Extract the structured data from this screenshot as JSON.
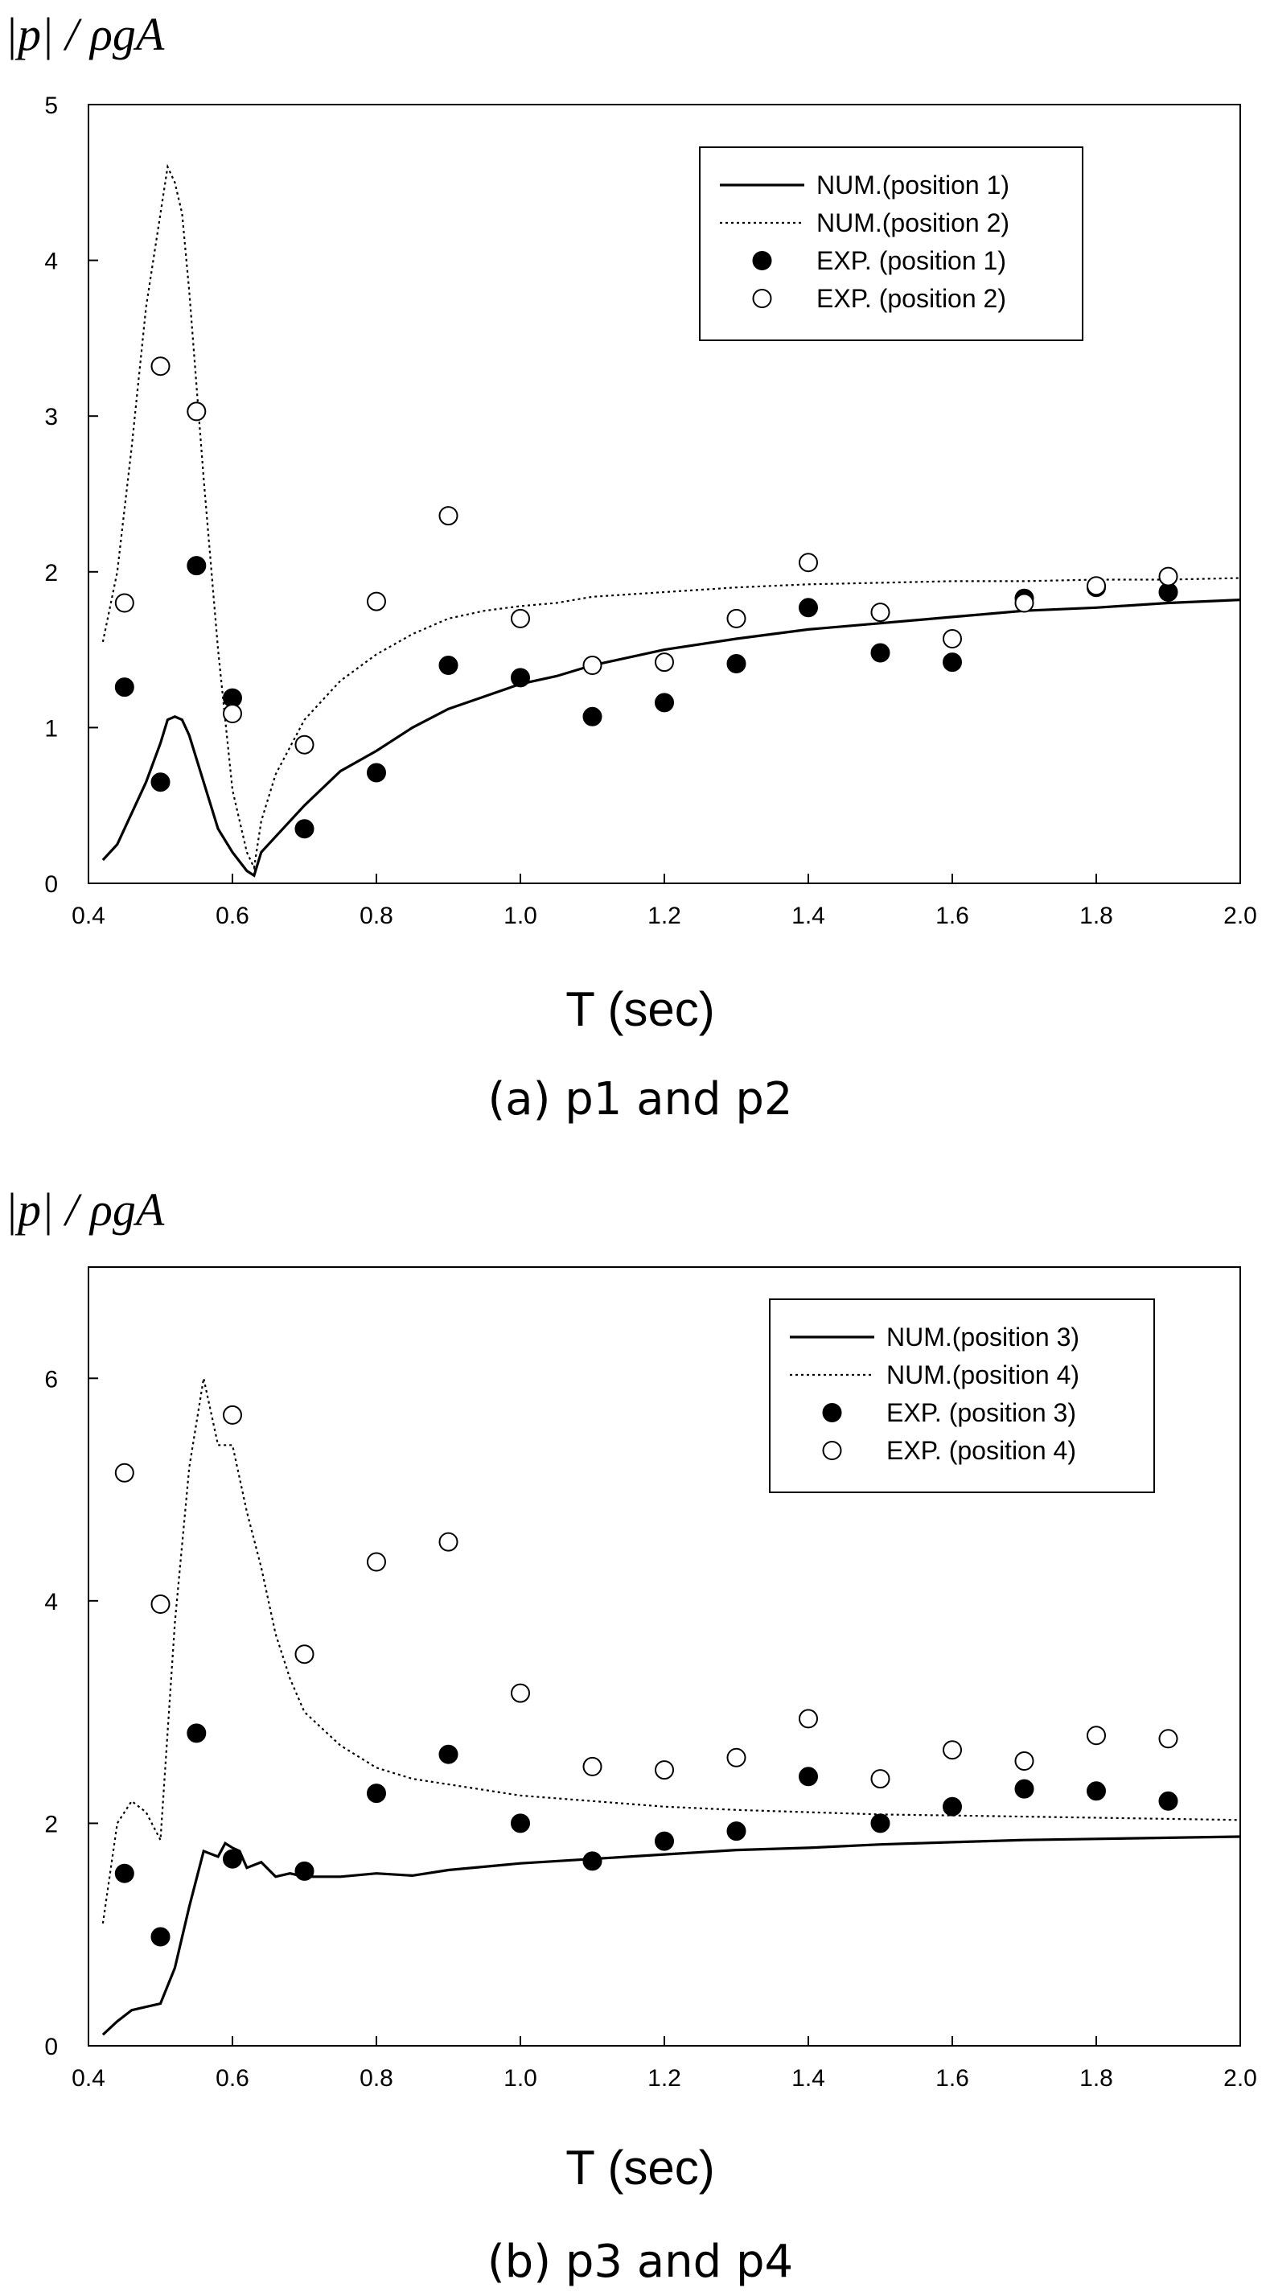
{
  "chart_data": [
    {
      "type": "line",
      "ylabel": "|p| / ρgA",
      "xlabel": "T (sec)",
      "caption": "(a) p1 and p2",
      "xlim": [
        0.4,
        2.0
      ],
      "ylim": [
        0,
        5
      ],
      "xticks": [
        "0.4",
        "0.6",
        "0.8",
        "1.0",
        "1.2",
        "1.4",
        "1.6",
        "1.8",
        "2.0"
      ],
      "yticks": [
        "0",
        "1",
        "2",
        "3",
        "4",
        "5"
      ],
      "legend_position": "top-right",
      "series": [
        {
          "name": "NUM.(position 1)",
          "style": "solid",
          "x": [
            0.42,
            0.44,
            0.46,
            0.48,
            0.5,
            0.51,
            0.52,
            0.53,
            0.54,
            0.56,
            0.58,
            0.6,
            0.62,
            0.63,
            0.64,
            0.66,
            0.7,
            0.75,
            0.8,
            0.85,
            0.9,
            0.95,
            1.0,
            1.05,
            1.1,
            1.2,
            1.3,
            1.4,
            1.5,
            1.6,
            1.7,
            1.8,
            1.9,
            2.0
          ],
          "y": [
            0.15,
            0.25,
            0.45,
            0.65,
            0.9,
            1.05,
            1.07,
            1.05,
            0.95,
            0.65,
            0.35,
            0.2,
            0.08,
            0.05,
            0.2,
            0.3,
            0.5,
            0.72,
            0.85,
            1.0,
            1.12,
            1.2,
            1.28,
            1.33,
            1.4,
            1.5,
            1.57,
            1.63,
            1.67,
            1.71,
            1.75,
            1.77,
            1.8,
            1.82
          ]
        },
        {
          "name": "NUM.(position 2)",
          "style": "dotted",
          "x": [
            0.42,
            0.44,
            0.46,
            0.48,
            0.5,
            0.51,
            0.52,
            0.53,
            0.54,
            0.56,
            0.58,
            0.6,
            0.62,
            0.63,
            0.64,
            0.66,
            0.7,
            0.75,
            0.8,
            0.85,
            0.9,
            0.95,
            1.0,
            1.05,
            1.1,
            1.2,
            1.3,
            1.4,
            1.5,
            1.6,
            1.7,
            1.8,
            1.9,
            2.0
          ],
          "y": [
            1.55,
            2.0,
            2.8,
            3.7,
            4.3,
            4.6,
            4.5,
            4.3,
            3.8,
            2.6,
            1.5,
            0.6,
            0.2,
            0.1,
            0.4,
            0.7,
            1.05,
            1.3,
            1.47,
            1.6,
            1.7,
            1.75,
            1.78,
            1.8,
            1.84,
            1.87,
            1.9,
            1.92,
            1.93,
            1.94,
            1.94,
            1.95,
            1.95,
            1.96
          ]
        },
        {
          "name": "EXP. (position 1)",
          "style": "filled-marker",
          "x": [
            0.45,
            0.5,
            0.55,
            0.6,
            0.7,
            0.8,
            0.9,
            1.0,
            1.1,
            1.2,
            1.3,
            1.4,
            1.5,
            1.6,
            1.7,
            1.8,
            1.9
          ],
          "y": [
            1.26,
            0.65,
            2.04,
            1.19,
            0.35,
            0.71,
            1.4,
            1.32,
            1.07,
            1.16,
            1.41,
            1.77,
            1.48,
            1.42,
            1.83,
            1.9,
            1.87
          ]
        },
        {
          "name": "EXP. (position 2)",
          "style": "open-marker",
          "x": [
            0.45,
            0.5,
            0.55,
            0.6,
            0.7,
            0.8,
            0.9,
            1.0,
            1.1,
            1.2,
            1.3,
            1.4,
            1.5,
            1.6,
            1.7,
            1.8,
            1.9
          ],
          "y": [
            1.8,
            3.32,
            3.03,
            1.09,
            0.89,
            1.81,
            2.36,
            1.7,
            1.4,
            1.42,
            1.7,
            2.06,
            1.74,
            1.57,
            1.8,
            1.91,
            1.97
          ]
        }
      ]
    },
    {
      "type": "line",
      "ylabel": "|p| / ρgA",
      "xlabel": "T (sec)",
      "caption": "(b) p3 and p4",
      "xlim": [
        0.4,
        2.0
      ],
      "ylim": [
        0,
        7
      ],
      "xticks": [
        "0.4",
        "0.6",
        "0.8",
        "1.0",
        "1.2",
        "1.4",
        "1.6",
        "1.8",
        "2.0"
      ],
      "yticks": [
        "0",
        "2",
        "4",
        "6"
      ],
      "legend_position": "top-right",
      "series": [
        {
          "name": "NUM.(position 3)",
          "style": "solid",
          "x": [
            0.42,
            0.44,
            0.46,
            0.48,
            0.5,
            0.52,
            0.54,
            0.56,
            0.58,
            0.59,
            0.6,
            0.61,
            0.62,
            0.64,
            0.66,
            0.68,
            0.7,
            0.75,
            0.8,
            0.85,
            0.9,
            1.0,
            1.1,
            1.2,
            1.3,
            1.4,
            1.5,
            1.6,
            1.7,
            1.8,
            1.9,
            2.0
          ],
          "y": [
            0.1,
            0.22,
            0.32,
            0.35,
            0.38,
            0.7,
            1.25,
            1.75,
            1.7,
            1.82,
            1.78,
            1.75,
            1.6,
            1.65,
            1.52,
            1.55,
            1.52,
            1.52,
            1.55,
            1.53,
            1.58,
            1.64,
            1.68,
            1.72,
            1.76,
            1.78,
            1.81,
            1.83,
            1.85,
            1.86,
            1.87,
            1.88
          ]
        },
        {
          "name": "NUM.(position 4)",
          "style": "dotted",
          "x": [
            0.42,
            0.44,
            0.46,
            0.48,
            0.5,
            0.52,
            0.54,
            0.56,
            0.58,
            0.6,
            0.62,
            0.64,
            0.66,
            0.68,
            0.7,
            0.75,
            0.8,
            0.85,
            0.9,
            1.0,
            1.1,
            1.2,
            1.3,
            1.4,
            1.5,
            1.6,
            1.7,
            1.8,
            1.9,
            2.0
          ],
          "y": [
            1.1,
            2.0,
            2.2,
            2.1,
            1.85,
            3.8,
            5.2,
            6.0,
            5.4,
            5.4,
            4.8,
            4.3,
            3.7,
            3.3,
            3.0,
            2.7,
            2.5,
            2.4,
            2.35,
            2.25,
            2.2,
            2.15,
            2.12,
            2.1,
            2.08,
            2.07,
            2.06,
            2.05,
            2.04,
            2.03
          ]
        },
        {
          "name": "EXP. (position 3)",
          "style": "filled-marker",
          "x": [
            0.45,
            0.5,
            0.55,
            0.6,
            0.7,
            0.8,
            0.9,
            1.0,
            1.1,
            1.2,
            1.3,
            1.4,
            1.5,
            1.6,
            1.7,
            1.8,
            1.9
          ],
          "y": [
            1.55,
            0.98,
            2.81,
            1.68,
            1.57,
            2.27,
            2.62,
            2.0,
            1.66,
            1.84,
            1.93,
            2.42,
            2.0,
            2.15,
            2.31,
            2.29,
            2.2
          ]
        },
        {
          "name": "EXP. (position 4)",
          "style": "open-marker",
          "x": [
            0.45,
            0.5,
            0.6,
            0.7,
            0.8,
            0.9,
            1.0,
            1.1,
            1.2,
            1.3,
            1.4,
            1.5,
            1.6,
            1.7,
            1.8,
            1.9
          ],
          "y": [
            5.15,
            3.97,
            5.67,
            3.52,
            4.35,
            4.53,
            3.17,
            2.51,
            2.48,
            2.59,
            2.94,
            2.4,
            2.66,
            2.56,
            2.79,
            2.76
          ]
        }
      ]
    }
  ]
}
